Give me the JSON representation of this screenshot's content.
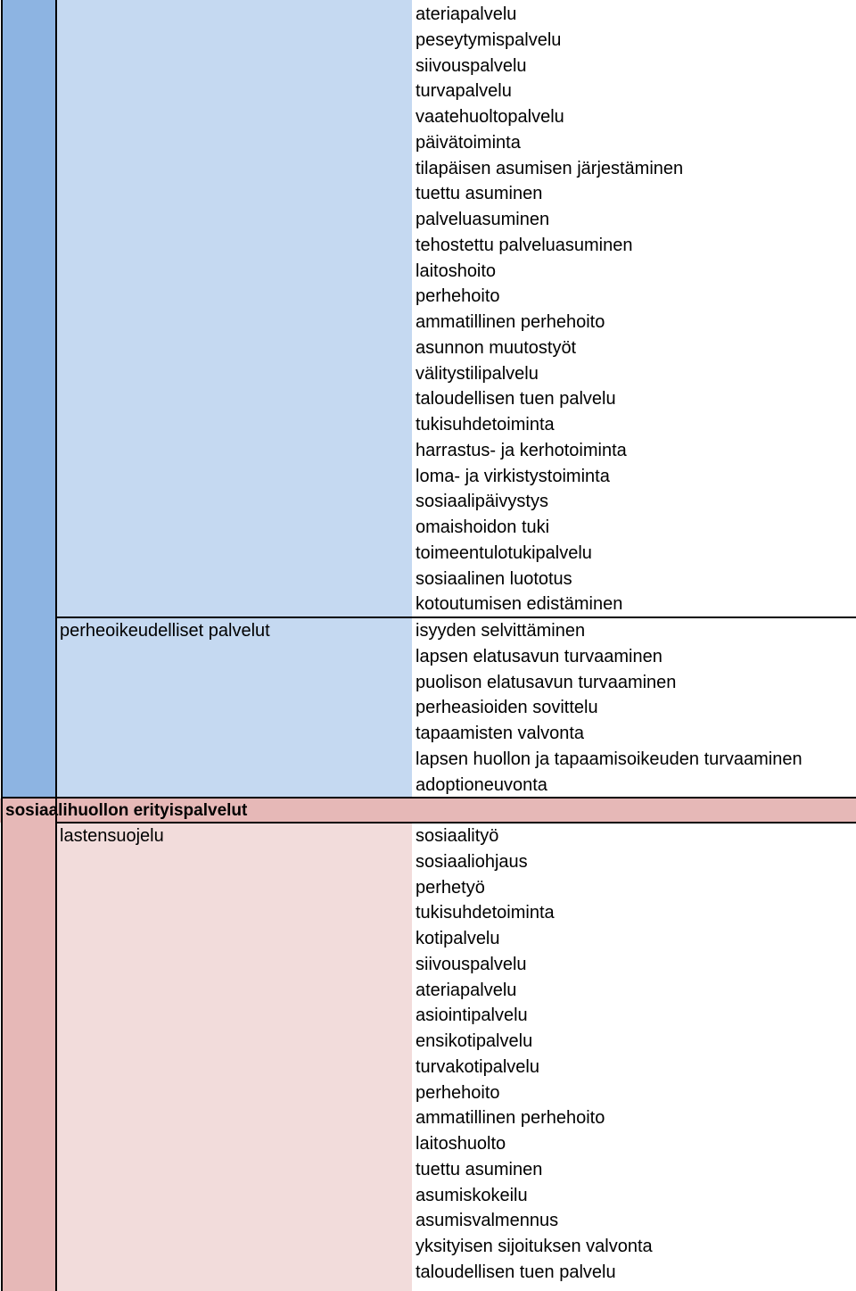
{
  "section_general": {
    "services": [
      "ateriapalvelu",
      "peseytymispalvelu",
      "siivouspalvelu",
      "turvapalvelu",
      "vaatehuoltopalvelu",
      "päivätoiminta",
      "tilapäisen asumisen järjestäminen",
      "tuettu asuminen",
      "palveluasuminen",
      "tehostettu palveluasuminen",
      "laitoshoito",
      "perhehoito",
      "ammatillinen perhehoito",
      "asunnon muutostyöt",
      "välitystilipalvelu",
      "taloudellisen tuen palvelu",
      "tukisuhdetoiminta",
      "harrastus- ja kerhotoiminta",
      "loma- ja virkistystoiminta",
      "sosiaalipäivystys",
      "omaishoidon tuki",
      "toimeentulotukipalvelu",
      "sosiaalinen luototus",
      "kotoutumisen edistäminen"
    ]
  },
  "section_family_law": {
    "title": "perheoikeudelliset palvelut",
    "services": [
      "isyyden selvittäminen",
      "lapsen elatusavun turvaaminen",
      "puolison elatusavun turvaaminen",
      "perheasioiden sovittelu",
      "tapaamisten valvonta",
      "lapsen huollon ja tapaamisoikeuden turvaaminen",
      "adoptioneuvonta"
    ]
  },
  "section_special": {
    "title": "sosiaalihuollon erityispalvelut",
    "subsection": {
      "title": "lastensuojelu",
      "services": [
        "sosiaalityö",
        "sosiaaliohjaus",
        "perhetyö",
        "tukisuhdetoiminta",
        "kotipalvelu",
        "siivouspalvelu",
        "ateriapalvelu",
        "asiointipalvelu",
        "ensikotipalvelu",
        "turvakotipalvelu",
        "perhehoito",
        "ammatillinen perhehoito",
        "laitoshuolto",
        "tuettu asuminen",
        "asumiskokeilu",
        "asumisvalmennus",
        "yksityisen sijoituksen valvonta",
        "taloudellisen tuen palvelu"
      ]
    }
  },
  "colors": {
    "blue_dark": "#8db4e2",
    "blue_light": "#c5d9f1",
    "pink_dark": "#e6b8b7",
    "pink_light": "#f2dcdb"
  }
}
